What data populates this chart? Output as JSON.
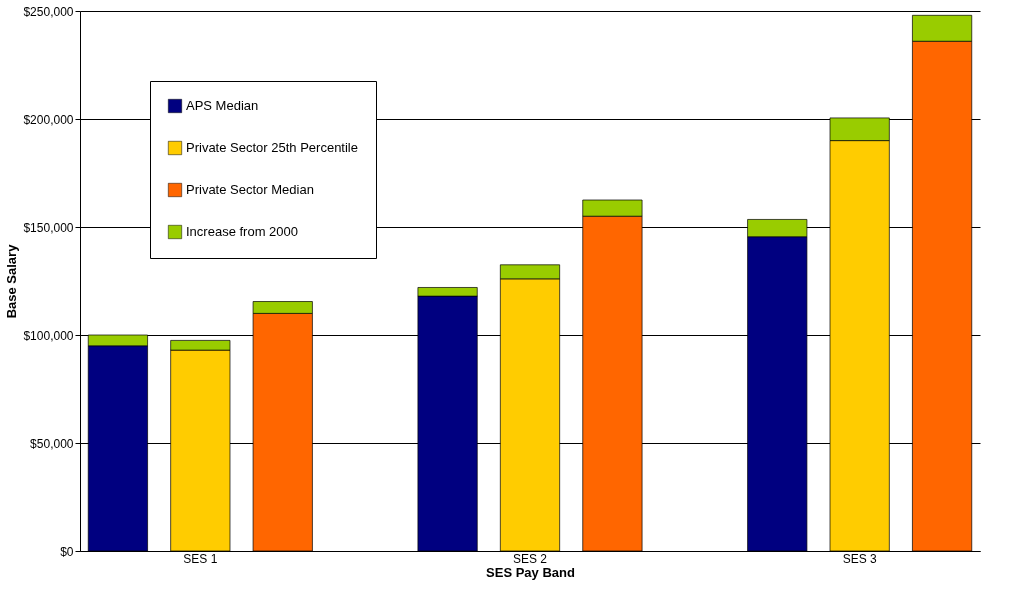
{
  "chart_data": {
    "type": "bar",
    "xlabel": "SES Pay Band",
    "ylabel": "Base Salary",
    "categories": [
      null,
      "SES 1",
      null,
      null,
      null,
      "SES 2",
      null,
      null,
      null,
      "SES 3",
      null
    ],
    "stacked": true,
    "series": [
      {
        "name": "APS Median",
        "color": "#000080",
        "values": [
          95000,
          null,
          null,
          null,
          118000,
          null,
          null,
          null,
          145500,
          null,
          null
        ]
      },
      {
        "name": "Private Sector 25th Percentile",
        "color": "#ffcc00",
        "values": [
          null,
          93000,
          null,
          null,
          null,
          126000,
          null,
          null,
          null,
          190000,
          null
        ]
      },
      {
        "name": "Private Sector Median",
        "color": "#ff6600",
        "values": [
          null,
          null,
          110000,
          null,
          null,
          null,
          155000,
          null,
          null,
          null,
          236000
        ]
      },
      {
        "name": "Increase from 2000",
        "color": "#99cc00",
        "values": [
          5000,
          4500,
          5500,
          null,
          4000,
          6500,
          7500,
          null,
          8000,
          10500,
          12000
        ]
      }
    ],
    "ylim": [
      0,
      250000
    ],
    "yticks": [
      {
        "value": 0,
        "label": "$0"
      },
      {
        "value": 50000,
        "label": "$50,000"
      },
      {
        "value": 100000,
        "label": "$100,000"
      },
      {
        "value": 150000,
        "label": "$150,000"
      },
      {
        "value": 200000,
        "label": "$200,000"
      },
      {
        "value": 250000,
        "label": "$250,000"
      }
    ],
    "grid": "y",
    "legend": "top left"
  }
}
